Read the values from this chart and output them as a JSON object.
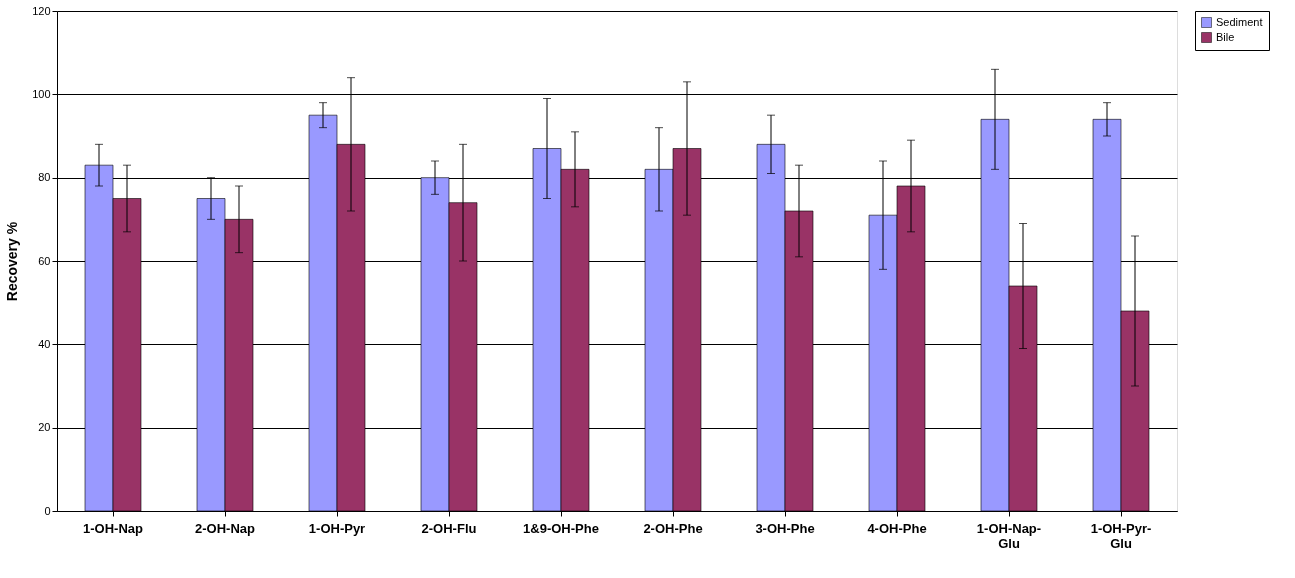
{
  "chart_data": {
    "type": "bar",
    "ylabel": "Recovery %",
    "categories": [
      "1-OH-Nap",
      "2-OH-Nap",
      "1-OH-Pyr",
      "2-OH-Flu",
      "1&9-OH-Phe",
      "2-OH-Phe",
      "3-OH-Phe",
      "4-OH-Phe",
      "1-OH-Nap-Glu",
      "1-OH-Pyr-Glu"
    ],
    "series": [
      {
        "name": "Sediment",
        "color": "#9999ff",
        "values": [
          83,
          75,
          95,
          80,
          87,
          82,
          88,
          71,
          94,
          94
        ],
        "errors": [
          5,
          5,
          3,
          4,
          12,
          10,
          7,
          13,
          12,
          4
        ]
      },
      {
        "name": "Bile",
        "color": "#993366",
        "values": [
          75,
          70,
          88,
          74,
          82,
          87,
          72,
          78,
          54,
          48
        ],
        "errors": [
          8,
          8,
          16,
          14,
          9,
          16,
          11,
          11,
          15,
          18
        ]
      }
    ],
    "ylim": [
      0,
      120
    ],
    "yticks": [
      0,
      20,
      40,
      60,
      80,
      100,
      120
    ],
    "grid": "y",
    "legend": "right"
  }
}
